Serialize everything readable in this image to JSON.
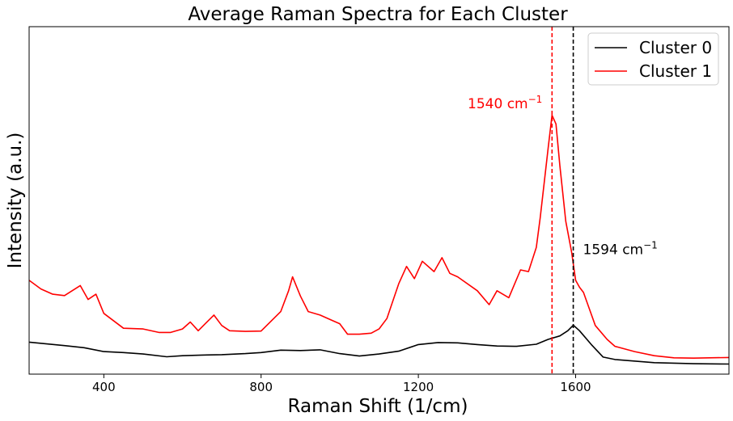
{
  "chart_data": {
    "type": "line",
    "title": "Average Raman Spectra for Each Cluster",
    "xlabel": "Raman Shift (1/cm)",
    "ylabel": "Intensity (a.u.)",
    "xlim": [
      210,
      1990
    ],
    "ylim": [
      0,
      100
    ],
    "xticks": [
      400,
      800,
      1200,
      1600
    ],
    "yticks_shown": false,
    "legend": {
      "placement": "top-right"
    },
    "series": [
      {
        "name": "Cluster 0",
        "color": "#000000",
        "points": [
          [
            210,
            9.2
          ],
          [
            300,
            8.2
          ],
          [
            350,
            7.6
          ],
          [
            400,
            6.5
          ],
          [
            450,
            6.2
          ],
          [
            500,
            5.8
          ],
          [
            560,
            5.0
          ],
          [
            600,
            5.3
          ],
          [
            650,
            5.5
          ],
          [
            700,
            5.6
          ],
          [
            760,
            5.9
          ],
          [
            800,
            6.2
          ],
          [
            850,
            6.9
          ],
          [
            900,
            6.8
          ],
          [
            950,
            7.0
          ],
          [
            1000,
            5.9
          ],
          [
            1050,
            5.2
          ],
          [
            1100,
            5.8
          ],
          [
            1150,
            6.6
          ],
          [
            1200,
            8.5
          ],
          [
            1250,
            9.1
          ],
          [
            1300,
            9.0
          ],
          [
            1350,
            8.5
          ],
          [
            1400,
            8.1
          ],
          [
            1450,
            8.0
          ],
          [
            1500,
            8.6
          ],
          [
            1530,
            10.0
          ],
          [
            1560,
            11.0
          ],
          [
            1580,
            12.5
          ],
          [
            1594,
            14.1
          ],
          [
            1610,
            12.5
          ],
          [
            1640,
            8.5
          ],
          [
            1670,
            4.9
          ],
          [
            1700,
            4.2
          ],
          [
            1800,
            3.3
          ],
          [
            1900,
            3.0
          ],
          [
            1990,
            2.9
          ]
        ]
      },
      {
        "name": "Cluster 1",
        "color": "#ff0000",
        "points": [
          [
            210,
            27.0
          ],
          [
            240,
            24.5
          ],
          [
            270,
            23.0
          ],
          [
            300,
            22.6
          ],
          [
            340,
            25.5
          ],
          [
            360,
            21.5
          ],
          [
            380,
            23.0
          ],
          [
            400,
            17.5
          ],
          [
            450,
            13.2
          ],
          [
            500,
            13.0
          ],
          [
            540,
            12.0
          ],
          [
            570,
            12.0
          ],
          [
            600,
            13.0
          ],
          [
            620,
            15.0
          ],
          [
            640,
            12.5
          ],
          [
            680,
            17.0
          ],
          [
            700,
            14.0
          ],
          [
            720,
            12.5
          ],
          [
            760,
            12.3
          ],
          [
            800,
            12.4
          ],
          [
            850,
            18.0
          ],
          [
            870,
            24.0
          ],
          [
            880,
            28.0
          ],
          [
            900,
            22.5
          ],
          [
            920,
            18.0
          ],
          [
            950,
            17.0
          ],
          [
            980,
            15.5
          ],
          [
            1000,
            14.5
          ],
          [
            1020,
            11.5
          ],
          [
            1050,
            11.5
          ],
          [
            1080,
            11.8
          ],
          [
            1100,
            13.0
          ],
          [
            1120,
            16.0
          ],
          [
            1150,
            26.0
          ],
          [
            1170,
            31.0
          ],
          [
            1190,
            27.5
          ],
          [
            1210,
            32.5
          ],
          [
            1240,
            29.5
          ],
          [
            1260,
            33.5
          ],
          [
            1280,
            29.0
          ],
          [
            1300,
            28.0
          ],
          [
            1350,
            24.0
          ],
          [
            1380,
            20.0
          ],
          [
            1400,
            24.0
          ],
          [
            1430,
            22.0
          ],
          [
            1460,
            30.0
          ],
          [
            1480,
            29.5
          ],
          [
            1500,
            36.5
          ],
          [
            1510,
            45.0
          ],
          [
            1520,
            55.0
          ],
          [
            1530,
            65.0
          ],
          [
            1540,
            74.5
          ],
          [
            1550,
            72.0
          ],
          [
            1560,
            60.0
          ],
          [
            1575,
            44.0
          ],
          [
            1590,
            35.0
          ],
          [
            1600,
            27.0
          ],
          [
            1610,
            25.0
          ],
          [
            1620,
            23.5
          ],
          [
            1650,
            14.0
          ],
          [
            1680,
            10.0
          ],
          [
            1700,
            8.0
          ],
          [
            1750,
            6.5
          ],
          [
            1800,
            5.3
          ],
          [
            1850,
            4.7
          ],
          [
            1900,
            4.6
          ],
          [
            1990,
            4.8
          ]
        ]
      }
    ],
    "vlines": [
      {
        "x": 1540,
        "color": "#ff0000",
        "style": "dashed"
      },
      {
        "x": 1594,
        "color": "#000000",
        "style": "dashed"
      }
    ],
    "annotations": [
      {
        "text": "1540 cm",
        "sup": "−1",
        "color": "#ff0000",
        "x": 1540,
        "y": 76.5,
        "anchor": "end"
      },
      {
        "text": "1594 cm",
        "sup": "−1",
        "color": "#000000",
        "x": 1594,
        "y": 34.5,
        "anchor": "start"
      }
    ]
  }
}
